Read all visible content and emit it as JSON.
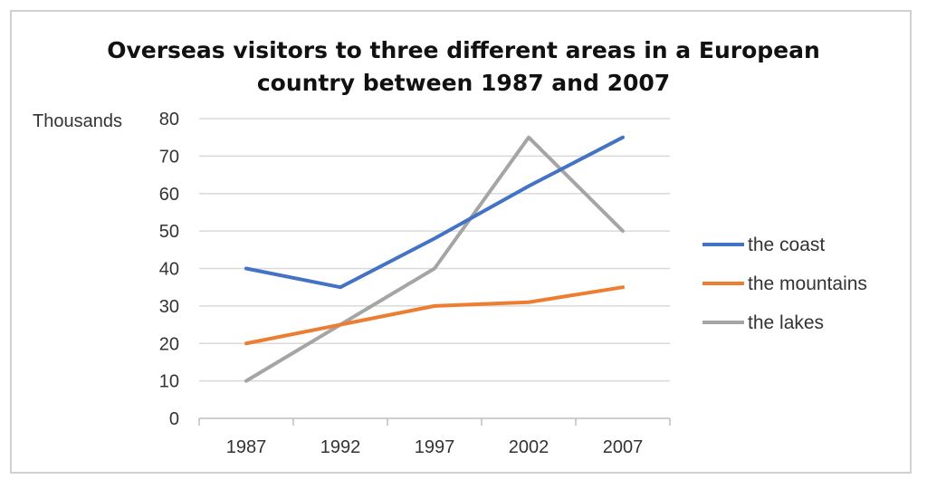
{
  "chart_data": {
    "type": "line",
    "title_line1": "Overseas visitors to three different areas in a European",
    "title_line2": "country between 1987 and 2007",
    "ylabel": "Thousands",
    "xlabel": "",
    "categories": [
      "1987",
      "1992",
      "1997",
      "2002",
      "2007"
    ],
    "ylim": [
      0,
      80
    ],
    "yticks": [
      0,
      10,
      20,
      30,
      40,
      50,
      60,
      70,
      80
    ],
    "grid": true,
    "legend_position": "right",
    "series": [
      {
        "name": "the coast",
        "color": "#4472c4",
        "values": [
          40,
          35,
          48,
          62,
          75
        ]
      },
      {
        "name": "the mountains",
        "color": "#ed7d31",
        "values": [
          20,
          25,
          30,
          31,
          35
        ]
      },
      {
        "name": "the lakes",
        "color": "#a5a5a5",
        "values": [
          10,
          25,
          40,
          75,
          50
        ]
      }
    ]
  }
}
